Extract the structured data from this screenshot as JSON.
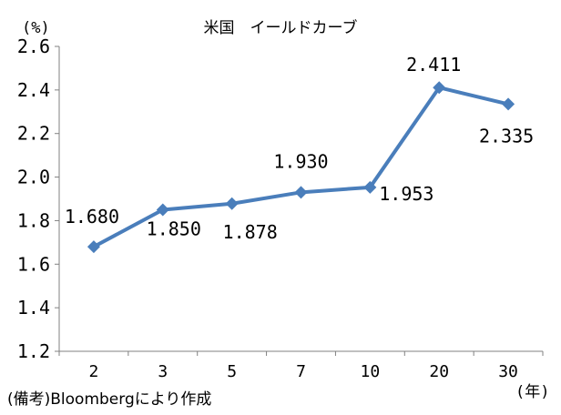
{
  "chart_data": {
    "type": "line",
    "title": "米国　イールドカーブ",
    "ylabel": "(%)",
    "xlabel": "(年)",
    "categories": [
      "2",
      "3",
      "5",
      "7",
      "10",
      "20",
      "30"
    ],
    "series": [
      {
        "values": [
          1.68,
          1.85,
          1.878,
          1.93,
          1.953,
          2.411,
          2.335
        ],
        "labels": [
          "1.680",
          "1.850",
          "1.878",
          "1.930",
          "1.953",
          "2.411",
          "2.335"
        ],
        "color": "#4a7ebb"
      }
    ],
    "ylim": [
      1.2,
      2.6
    ],
    "yticks": [
      "1.2",
      "1.4",
      "1.6",
      "1.8",
      "2.0",
      "2.2",
      "2.4",
      "2.6"
    ],
    "grid": false,
    "legend": "none",
    "note": "(備考)Bloombergにより作成"
  }
}
